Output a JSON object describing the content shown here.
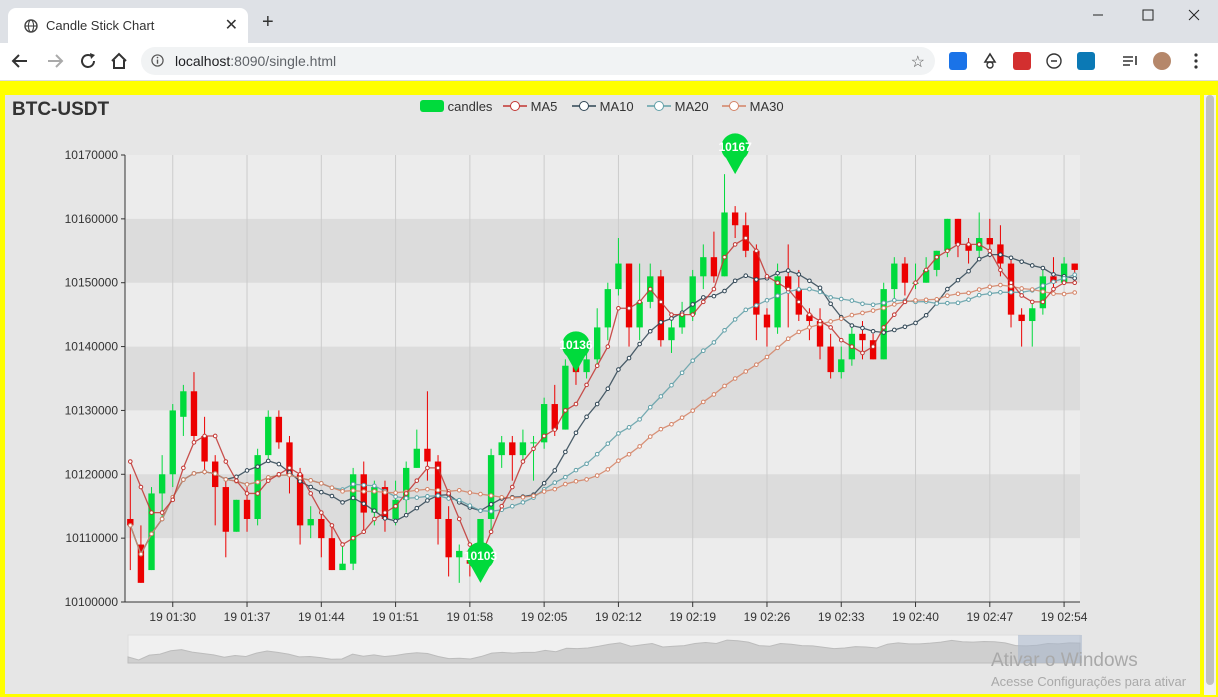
{
  "browser": {
    "tab_title": "Candle Stick Chart",
    "url_host": "localhost",
    "url_rest": ":8090/single.html",
    "new_tab_symbol": "+",
    "close_tab_symbol": "✕"
  },
  "chart": {
    "title": "BTC-USDT",
    "legend": [
      "candles",
      "MA5",
      "MA10",
      "MA20",
      "MA30"
    ]
  },
  "colors": {
    "up": "#00da3c",
    "down": "#ec0000",
    "ma5": "#c23531",
    "ma10": "#2f4554",
    "ma20": "#61a0a8",
    "ma30": "#d48265",
    "page_border": "#ffff00"
  },
  "watermark": {
    "line1": "Ativar o Windows",
    "line2": "Acesse Configurações para ativar"
  },
  "chart_data": {
    "type": "candlestick",
    "title": "BTC-USDT",
    "series_names": [
      "candles",
      "MA5",
      "MA10",
      "MA20",
      "MA30"
    ],
    "x_tick_labels": [
      "19 01:30",
      "19 01:37",
      "19 01:44",
      "19 01:51",
      "19 01:58",
      "19 02:05",
      "19 02:12",
      "19 02:19",
      "19 02:26",
      "19 02:33",
      "19 02:40",
      "19 02:47",
      "19 02:54"
    ],
    "y_tick_labels": [
      "10100000",
      "10110000",
      "10120000",
      "10130000",
      "10140000",
      "10150000",
      "10160000",
      "10170000"
    ],
    "ylim": [
      10100000,
      10170000
    ],
    "start_time": "19 01:26",
    "interval_minutes": 1,
    "markers": [
      {
        "label": "10167",
        "value": 10167000,
        "time": "19 02:23"
      },
      {
        "label": "10136",
        "value": 10136000,
        "time": "19 02:08"
      },
      {
        "label": "10103",
        "value": 10103000,
        "time": "19 01:59"
      }
    ],
    "ohlc": [
      [
        10113000,
        10112000,
        10105000,
        10120000
      ],
      [
        10109000,
        10103000,
        10103000,
        10112000
      ],
      [
        10105000,
        10117000,
        10105000,
        10118000
      ],
      [
        10117000,
        10120000,
        10113000,
        10123000
      ],
      [
        10120000,
        10130000,
        10118000,
        10131000
      ],
      [
        10129000,
        10133000,
        10126000,
        10134000
      ],
      [
        10133000,
        10126000,
        10125000,
        10136000
      ],
      [
        10126000,
        10122000,
        10120000,
        10129000
      ],
      [
        10122000,
        10118000,
        10112000,
        10123000
      ],
      [
        10118000,
        10111000,
        10107000,
        10119000
      ],
      [
        10111000,
        10116000,
        10111000,
        10116000
      ],
      [
        10116000,
        10113000,
        10111000,
        10118000
      ],
      [
        10113000,
        10123000,
        10112000,
        10124000
      ],
      [
        10123000,
        10129000,
        10122000,
        10130000
      ],
      [
        10129000,
        10125000,
        10124000,
        10130000
      ],
      [
        10125000,
        10120000,
        10117000,
        10126000
      ],
      [
        10120000,
        10112000,
        10109000,
        10121000
      ],
      [
        10112000,
        10113000,
        10110000,
        10115000
      ],
      [
        10113000,
        10110000,
        10107000,
        10114000
      ],
      [
        10110000,
        10105000,
        10105000,
        10112000
      ],
      [
        10105000,
        10106000,
        10105000,
        10109000
      ],
      [
        10106000,
        10120000,
        10105000,
        10121000
      ],
      [
        10120000,
        10114000,
        10111000,
        10122000
      ],
      [
        10114000,
        10118000,
        10112000,
        10119000
      ],
      [
        10118000,
        10113000,
        10111000,
        10119000
      ],
      [
        10113000,
        10116000,
        10112000,
        10119000
      ],
      [
        10116000,
        10121000,
        10114000,
        10122000
      ],
      [
        10121000,
        10124000,
        10121000,
        10127000
      ],
      [
        10124000,
        10122000,
        10119000,
        10133000
      ],
      [
        10122000,
        10113000,
        10109000,
        10123000
      ],
      [
        10113000,
        10107000,
        10104000,
        10115000
      ],
      [
        10107000,
        10108000,
        10103000,
        10109000
      ],
      [
        10108000,
        10106000,
        10104000,
        10108000
      ],
      [
        10106000,
        10113000,
        10104000,
        10113000
      ],
      [
        10113000,
        10123000,
        10111000,
        10124000
      ],
      [
        10123000,
        10125000,
        10121000,
        10126000
      ],
      [
        10125000,
        10123000,
        10119000,
        10126000
      ],
      [
        10123000,
        10125000,
        10122000,
        10127000
      ],
      [
        10125000,
        10125000,
        10119000,
        10126000
      ],
      [
        10125000,
        10131000,
        10124000,
        10132000
      ],
      [
        10131000,
        10127000,
        10126000,
        10134000
      ],
      [
        10127000,
        10137000,
        10127000,
        10138000
      ],
      [
        10137000,
        10136000,
        10134000,
        10139000
      ],
      [
        10136000,
        10138000,
        10135000,
        10140000
      ],
      [
        10138000,
        10143000,
        10137000,
        10146000
      ],
      [
        10143000,
        10149000,
        10141000,
        10150000
      ],
      [
        10149000,
        10153000,
        10148000,
        10157000
      ],
      [
        10153000,
        10143000,
        10140000,
        10153000
      ],
      [
        10143000,
        10147000,
        10141000,
        10153000
      ],
      [
        10147000,
        10151000,
        10146000,
        10153000
      ],
      [
        10151000,
        10141000,
        10140000,
        10152000
      ],
      [
        10141000,
        10143000,
        10139000,
        10145000
      ],
      [
        10143000,
        10145000,
        10142000,
        10147000
      ],
      [
        10145000,
        10151000,
        10144000,
        10152000
      ],
      [
        10151000,
        10154000,
        10149000,
        10156000
      ],
      [
        10154000,
        10151000,
        10150000,
        10158000
      ],
      [
        10151000,
        10161000,
        10151000,
        10167000
      ],
      [
        10161000,
        10159000,
        10157000,
        10162000
      ],
      [
        10159000,
        10155000,
        10154000,
        10161000
      ],
      [
        10155000,
        10145000,
        10141000,
        10156000
      ],
      [
        10145000,
        10143000,
        10140000,
        10146000
      ],
      [
        10143000,
        10151000,
        10142000,
        10153000
      ],
      [
        10151000,
        10149000,
        10143000,
        10156000
      ],
      [
        10149000,
        10145000,
        10144000,
        10152000
      ],
      [
        10145000,
        10144000,
        10141000,
        10146000
      ],
      [
        10144000,
        10140000,
        10138000,
        10146000
      ],
      [
        10140000,
        10136000,
        10135000,
        10142000
      ],
      [
        10136000,
        10138000,
        10135000,
        10140000
      ],
      [
        10138000,
        10142000,
        10137000,
        10143000
      ],
      [
        10142000,
        10141000,
        10138000,
        10144000
      ],
      [
        10141000,
        10138000,
        10138000,
        10142000
      ],
      [
        10138000,
        10149000,
        10138000,
        10150000
      ],
      [
        10149000,
        10153000,
        10147000,
        10154000
      ],
      [
        10153000,
        10150000,
        10148000,
        10154000
      ],
      [
        10150000,
        10150000,
        10149000,
        10153000
      ],
      [
        10150000,
        10152000,
        10150000,
        10154000
      ],
      [
        10152000,
        10155000,
        10151000,
        10155000
      ],
      [
        10155000,
        10160000,
        10154000,
        10160000
      ],
      [
        10160000,
        10156000,
        10154000,
        10160000
      ],
      [
        10156000,
        10155000,
        10153000,
        10157000
      ],
      [
        10155000,
        10157000,
        10154000,
        10161000
      ],
      [
        10157000,
        10156000,
        10154000,
        10160000
      ],
      [
        10156000,
        10153000,
        10151000,
        10159000
      ],
      [
        10153000,
        10145000,
        10143000,
        10154000
      ],
      [
        10145000,
        10144000,
        10140000,
        10146000
      ],
      [
        10144000,
        10146000,
        10140000,
        10147000
      ],
      [
        10146000,
        10151000,
        10145000,
        10152000
      ],
      [
        10151000,
        10150000,
        10148000,
        10154000
      ],
      [
        10150000,
        10153000,
        10150000,
        10154000
      ],
      [
        10153000,
        10152000,
        10150000,
        10153000
      ]
    ],
    "ma5": [
      10122000,
      10118000,
      10114000,
      10114000,
      10116000,
      10121000,
      10125000,
      10126000,
      10126000,
      10122000,
      10119000,
      10117000,
      10117000,
      10119000,
      10120000,
      10121000,
      10120000,
      10117000,
      10114000,
      10112000,
      10109000,
      10110000,
      10111000,
      10113000,
      10114000,
      10115000,
      10117000,
      10119000,
      10121000,
      10121000,
      10117000,
      10113000,
      10109000,
      10107000,
      10111000,
      10115000,
      10118000,
      10122000,
      10124000,
      10126000,
      10127000,
      10130000,
      10131000,
      10134000,
      10137000,
      10140000,
      10146000,
      10146000,
      10147000,
      10149000,
      10147000,
      10145000,
      10145000,
      10145000,
      10147000,
      10149000,
      10154000,
      10156000,
      10157000,
      10155000,
      10151000,
      10150000,
      10149000,
      10147000,
      10145000,
      10144000,
      10143000,
      10141000,
      10140000,
      10139000,
      10140000,
      10143000,
      10145000,
      10147000,
      10150000,
      10152000,
      10154000,
      10155000,
      10156000,
      10156000,
      10156000,
      10155000,
      10152000,
      10150000,
      10148000,
      10147000,
      10147000,
      10149000,
      10150000,
      10150000
    ]
  }
}
